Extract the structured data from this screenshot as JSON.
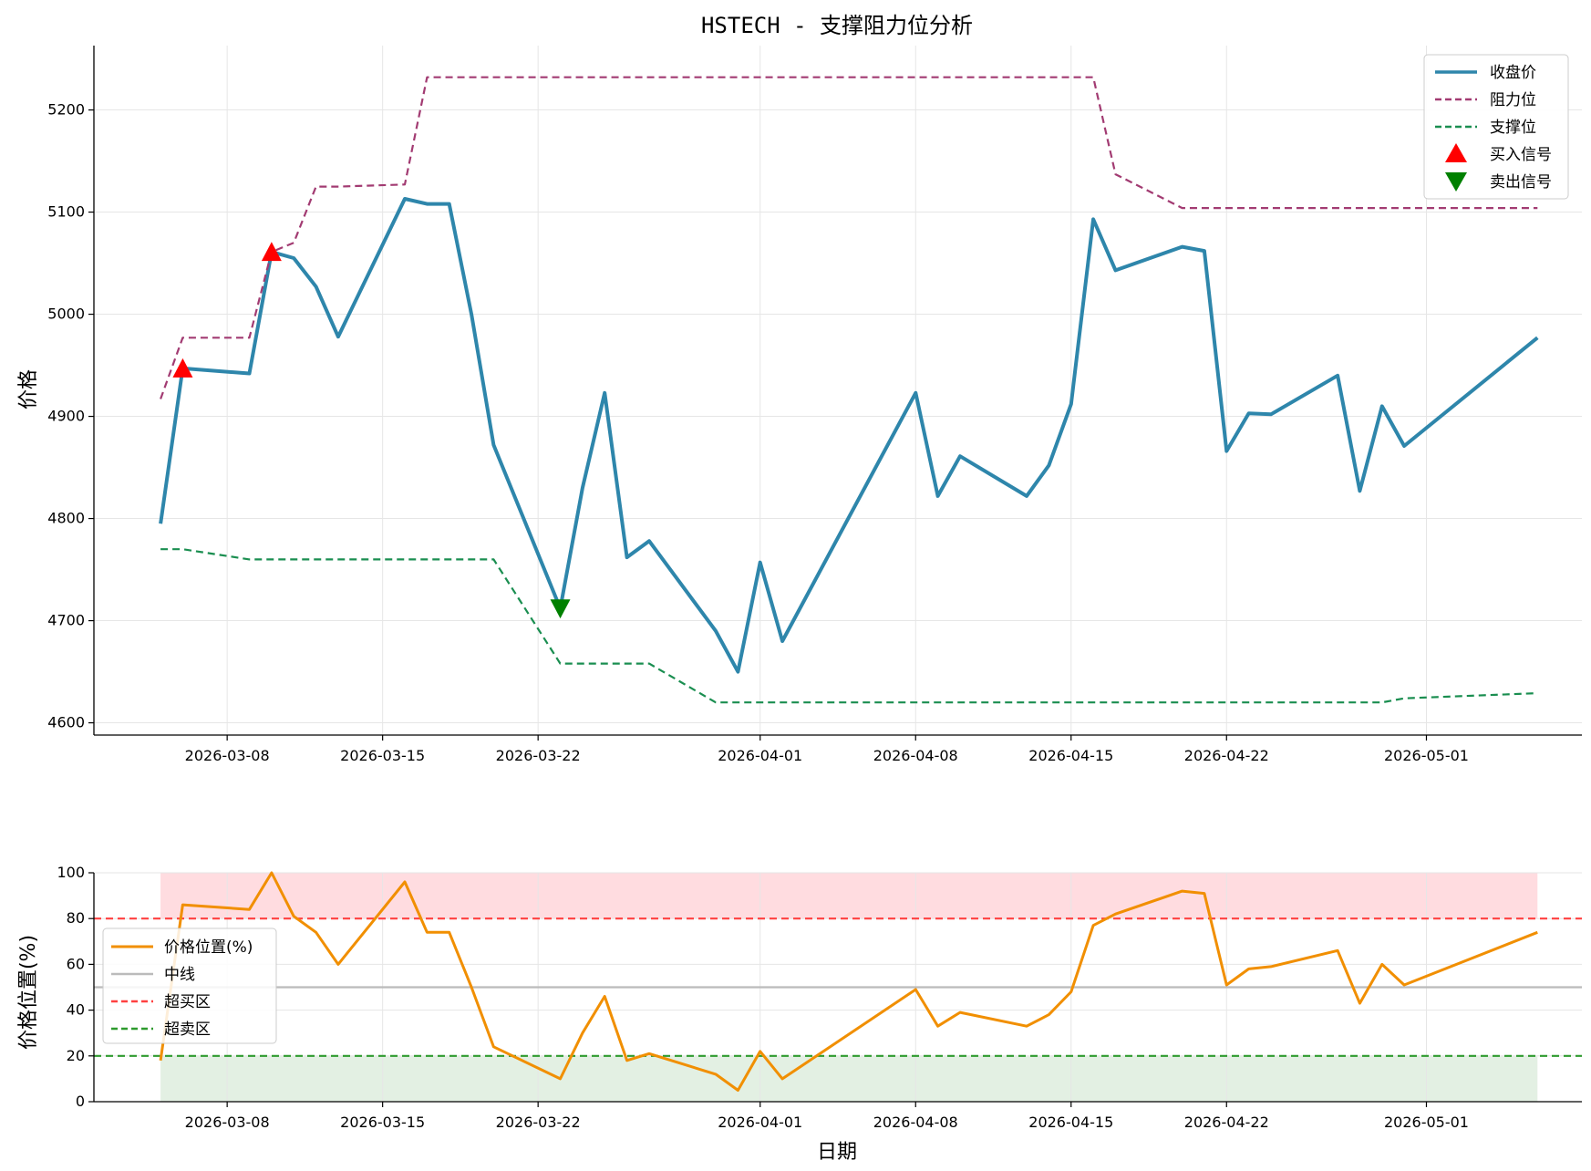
{
  "chart_data": [
    {
      "type": "line",
      "title": "HSTECH - 支撑阻力位分析",
      "ylabel": "价格",
      "xlabel": "",
      "ylim": [
        4588,
        5263
      ],
      "xlim": [
        "2026-03-02",
        "2026-05-08"
      ],
      "yticks": [
        4600,
        4700,
        4800,
        4900,
        5000,
        5100,
        5200
      ],
      "xticks": [
        "2026-03-08",
        "2026-03-15",
        "2026-03-22",
        "2026-04-01",
        "2026-04-08",
        "2026-04-15",
        "2026-04-22",
        "2026-05-01"
      ],
      "grid": true,
      "legend_position": "top-right",
      "x": [
        "2026-03-05",
        "2026-03-06",
        "2026-03-09",
        "2026-03-10",
        "2026-03-11",
        "2026-03-12",
        "2026-03-13",
        "2026-03-16",
        "2026-03-17",
        "2026-03-18",
        "2026-03-19",
        "2026-03-20",
        "2026-03-23",
        "2026-03-24",
        "2026-03-25",
        "2026-03-26",
        "2026-03-27",
        "2026-03-30",
        "2026-03-31",
        "2026-04-01",
        "2026-04-02",
        "2026-04-08",
        "2026-04-09",
        "2026-04-10",
        "2026-04-13",
        "2026-04-14",
        "2026-04-15",
        "2026-04-16",
        "2026-04-17",
        "2026-04-20",
        "2026-04-21",
        "2026-04-22",
        "2026-04-23",
        "2026-04-24",
        "2026-04-27",
        "2026-04-28",
        "2026-04-29",
        "2026-04-30",
        "2026-05-06"
      ],
      "series": [
        {
          "name": "收盘价",
          "color": "#2E86AB",
          "style": "solid",
          "values": [
            4795,
            4947,
            4942,
            5061,
            5055,
            5027,
            4978,
            5113,
            5108,
            5108,
            5000,
            4872,
            4712,
            4830,
            4923,
            4762,
            4778,
            4690,
            4650,
            4757,
            4680,
            4923,
            4822,
            4861,
            4822,
            4852,
            4912,
            5093,
            5043,
            5066,
            5062,
            4866,
            4903,
            4902,
            4940,
            4827,
            4910,
            4871,
            4977
          ]
        },
        {
          "name": "阻力位",
          "color": "#A23B72",
          "style": "dashed",
          "values": [
            4917,
            4977,
            4977,
            5061,
            5070,
            5125,
            5125,
            5127,
            5232,
            5232,
            5232,
            5232,
            5232,
            5232,
            5232,
            5232,
            5232,
            5232,
            5232,
            5232,
            5232,
            5232,
            5232,
            5232,
            5232,
            5232,
            5232,
            5232,
            5137,
            5104,
            5104,
            5104,
            5104,
            5104,
            5104,
            5104,
            5104,
            5104,
            5104
          ]
        },
        {
          "name": "支撑位",
          "color": "#1A8E50",
          "style": "dashed",
          "values": [
            4770,
            4770,
            4760,
            4760,
            4760,
            4760,
            4760,
            4760,
            4760,
            4760,
            4760,
            4760,
            4658,
            4658,
            4658,
            4658,
            4658,
            4620,
            4620,
            4620,
            4620,
            4620,
            4620,
            4620,
            4620,
            4620,
            4620,
            4620,
            4620,
            4620,
            4620,
            4620,
            4620,
            4620,
            4620,
            4620,
            4620,
            4624,
            4629
          ]
        }
      ],
      "markers": [
        {
          "name": "买入信号",
          "color": "#FF0000",
          "shape": "triangle-up",
          "points": [
            {
              "x": "2026-03-06",
              "y": 4947
            },
            {
              "x": "2026-03-10",
              "y": 5061
            }
          ]
        },
        {
          "name": "卖出信号",
          "color": "#008000",
          "shape": "triangle-down",
          "points": [
            {
              "x": "2026-03-23",
              "y": 4712
            }
          ]
        }
      ]
    },
    {
      "type": "line",
      "title": "",
      "xlabel": "日期",
      "ylabel": "价格位置(%)",
      "ylim": [
        0,
        100
      ],
      "xlim": [
        "2026-03-02",
        "2026-05-08"
      ],
      "yticks": [
        0,
        20,
        40,
        60,
        80,
        100
      ],
      "xticks": [
        "2026-03-08",
        "2026-03-15",
        "2026-03-22",
        "2026-04-01",
        "2026-04-08",
        "2026-04-15",
        "2026-04-22",
        "2026-05-01"
      ],
      "grid": true,
      "legend_position": "center-left",
      "x": [
        "2026-03-05",
        "2026-03-06",
        "2026-03-09",
        "2026-03-10",
        "2026-03-11",
        "2026-03-12",
        "2026-03-13",
        "2026-03-16",
        "2026-03-17",
        "2026-03-18",
        "2026-03-19",
        "2026-03-20",
        "2026-03-23",
        "2026-03-24",
        "2026-03-25",
        "2026-03-26",
        "2026-03-27",
        "2026-03-30",
        "2026-03-31",
        "2026-04-01",
        "2026-04-02",
        "2026-04-08",
        "2026-04-09",
        "2026-04-10",
        "2026-04-13",
        "2026-04-14",
        "2026-04-15",
        "2026-04-16",
        "2026-04-17",
        "2026-04-20",
        "2026-04-21",
        "2026-04-22",
        "2026-04-23",
        "2026-04-24",
        "2026-04-27",
        "2026-04-28",
        "2026-04-29",
        "2026-04-30",
        "2026-05-06"
      ],
      "series": [
        {
          "name": "价格位置(%)",
          "color": "#F18F01",
          "style": "solid",
          "values": [
            18,
            86,
            84,
            100,
            81,
            74,
            60,
            96,
            74,
            74,
            50,
            24,
            10,
            30,
            46,
            18,
            21,
            12,
            5,
            22,
            10,
            49,
            33,
            39,
            33,
            38,
            48,
            77,
            82,
            92,
            91,
            51,
            58,
            59,
            66,
            43,
            60,
            51,
            74
          ]
        }
      ],
      "hlines": [
        {
          "name": "中线",
          "y": 50,
          "color": "#BBBBBB",
          "style": "solid"
        },
        {
          "name": "超买区",
          "y": 80,
          "color": "#FF4040",
          "style": "dashed"
        },
        {
          "name": "超卖区",
          "y": 20,
          "color": "#2E9A2E",
          "style": "dashed"
        }
      ],
      "bands": [
        {
          "from": 80,
          "to": 100,
          "color": "#FFDCE0"
        },
        {
          "from": 0,
          "to": 20,
          "color": "#E3F0E3"
        }
      ]
    }
  ]
}
